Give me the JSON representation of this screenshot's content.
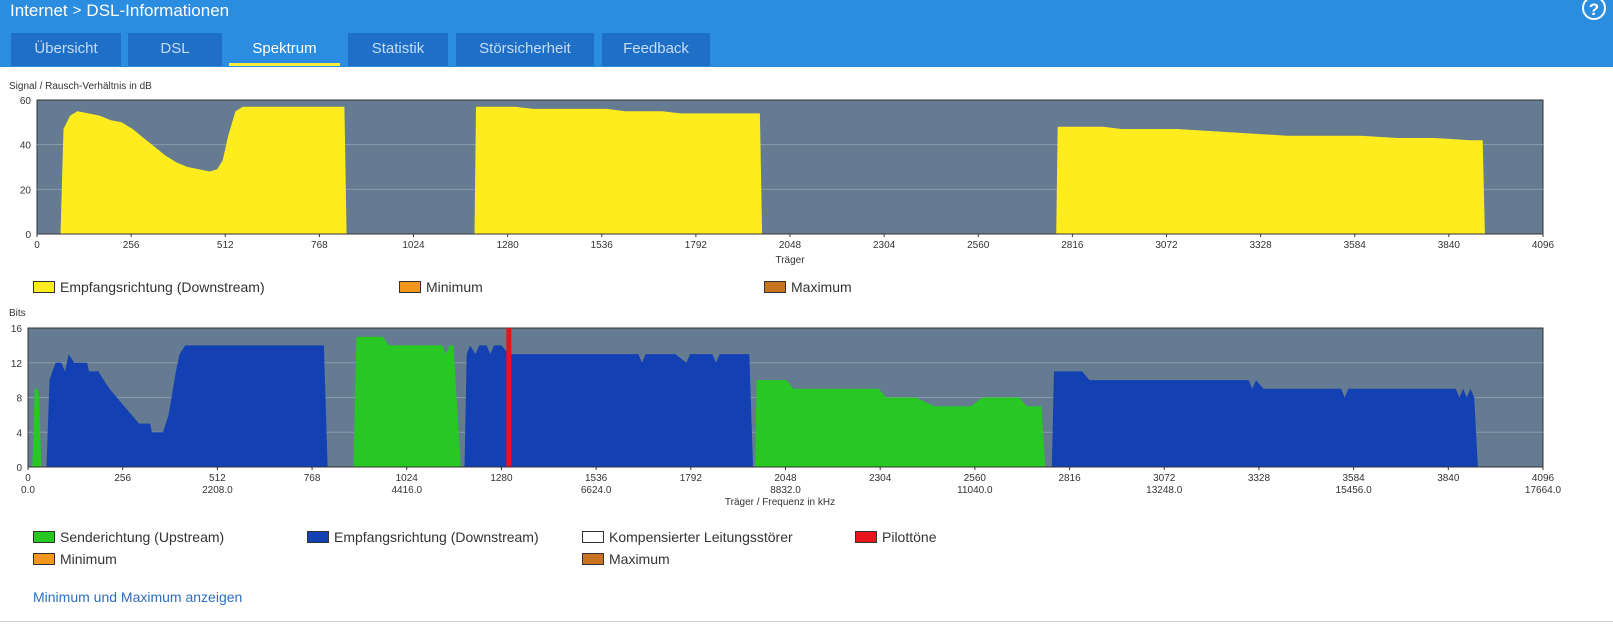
{
  "breadcrumb": {
    "parent": "Internet",
    "separator": ">",
    "current": "DSL-Informationen"
  },
  "help_label": "?",
  "tabs": [
    {
      "label": "Übersicht",
      "active": false
    },
    {
      "label": "DSL",
      "active": false
    },
    {
      "label": "Spektrum",
      "active": true
    },
    {
      "label": "Statistik",
      "active": false
    },
    {
      "label": "Störsicherheit",
      "active": false
    },
    {
      "label": "Feedback",
      "active": false
    }
  ],
  "colors": {
    "header_bg": "#2a8de0",
    "tab_bg": "#1f6fc6",
    "tab_active_underline": "#ffec3d",
    "plot_bg": "#647b91",
    "downstream_snr": "#ffec1f",
    "upstream": "#27c823",
    "downstream_bits": "#1341b3",
    "pilot": "#e8141b",
    "minimum": "#f2961d",
    "maximum": "#c8731f"
  },
  "chart_data": [
    {
      "type": "area",
      "title": "Signal / Rausch-Verhältnis in dB",
      "xlabel": "Träger",
      "ylabel": "",
      "xlim": [
        0,
        4096
      ],
      "ylim": [
        0,
        60
      ],
      "yticks": [
        0,
        20,
        40,
        60
      ],
      "xticks": [
        0,
        256,
        512,
        768,
        1024,
        1280,
        1536,
        1792,
        2048,
        2304,
        2560,
        2816,
        3072,
        3328,
        3584,
        3840,
        4096
      ],
      "grid": true,
      "legend": [
        "Empfangsrichtung (Downstream)",
        "Minimum",
        "Maximum"
      ],
      "series": [
        {
          "name": "Empfangsrichtung (Downstream)",
          "points": [
            [
              64,
              0
            ],
            [
              72,
              47
            ],
            [
              90,
              53
            ],
            [
              110,
              55
            ],
            [
              140,
              54
            ],
            [
              170,
              53
            ],
            [
              200,
              51
            ],
            [
              230,
              50
            ],
            [
              260,
              47
            ],
            [
              290,
              43
            ],
            [
              320,
              39
            ],
            [
              350,
              35
            ],
            [
              380,
              32
            ],
            [
              410,
              30
            ],
            [
              440,
              29
            ],
            [
              470,
              28
            ],
            [
              490,
              29
            ],
            [
              505,
              33
            ],
            [
              520,
              44
            ],
            [
              540,
              55
            ],
            [
              560,
              57
            ],
            [
              600,
              57
            ],
            [
              650,
              57
            ],
            [
              700,
              57
            ],
            [
              760,
              57
            ],
            [
              820,
              57
            ],
            [
              836,
              57
            ],
            [
              842,
              0
            ],
            [
              1190,
              0
            ],
            [
              1194,
              57
            ],
            [
              1250,
              57
            ],
            [
              1300,
              57
            ],
            [
              1350,
              56
            ],
            [
              1400,
              56
            ],
            [
              1450,
              56
            ],
            [
              1500,
              56
            ],
            [
              1550,
              56
            ],
            [
              1600,
              55
            ],
            [
              1650,
              55
            ],
            [
              1700,
              55
            ],
            [
              1750,
              54
            ],
            [
              1800,
              54
            ],
            [
              1850,
              54
            ],
            [
              1900,
              54
            ],
            [
              1950,
              54
            ],
            [
              1966,
              54
            ],
            [
              1972,
              0
            ],
            [
              2772,
              0
            ],
            [
              2776,
              48
            ],
            [
              2850,
              48
            ],
            [
              2900,
              48
            ],
            [
              2950,
              47
            ],
            [
              3000,
              47
            ],
            [
              3100,
              47
            ],
            [
              3200,
              46
            ],
            [
              3300,
              45
            ],
            [
              3400,
              44
            ],
            [
              3500,
              44
            ],
            [
              3600,
              44
            ],
            [
              3700,
              43
            ],
            [
              3800,
              43
            ],
            [
              3900,
              42
            ],
            [
              3932,
              42
            ],
            [
              3938,
              0
            ]
          ]
        }
      ]
    },
    {
      "type": "area",
      "title": "Bits",
      "xlabel": "Träger / Frequenz in kHz",
      "ylabel": "",
      "xlim": [
        0,
        4096
      ],
      "ylim": [
        0,
        16
      ],
      "yticks": [
        0,
        4,
        8,
        12,
        16
      ],
      "xticks": [
        0,
        256,
        512,
        768,
        1024,
        1280,
        1536,
        1792,
        2048,
        2304,
        2560,
        2816,
        3072,
        3328,
        3584,
        3840,
        4096
      ],
      "xticks_khz": [
        "0.0",
        "2208.0",
        "4416.0",
        "6624.0",
        "8832.0",
        "11040.0",
        "13248.0",
        "15456.0",
        "17664.0"
      ],
      "grid": true,
      "legend": [
        "Senderichtung (Upstream)",
        "Empfangsrichtung (Downstream)",
        "Kompensierter Leitungsstörer",
        "Pilottöne",
        "Minimum",
        "Maximum"
      ],
      "series": [
        {
          "name": "Senderichtung (Upstream)",
          "segments": [
            [
              [
                12,
                0
              ],
              [
                18,
                9
              ],
              [
                26,
                9
              ],
              [
                30,
                8
              ],
              [
                36,
                0
              ]
            ],
            [
              [
                880,
                0
              ],
              [
                888,
                15
              ],
              [
                960,
                15
              ],
              [
                975,
                14
              ],
              [
                1050,
                14
              ],
              [
                1120,
                14
              ],
              [
                1130,
                13
              ],
              [
                1140,
                14
              ],
              [
                1150,
                14
              ],
              [
                1170,
                0
              ]
            ],
            [
              [
                1966,
                0
              ],
              [
                1970,
                10
              ],
              [
                2050,
                10
              ],
              [
                2070,
                9
              ],
              [
                2150,
                9
              ],
              [
                2250,
                9
              ],
              [
                2300,
                9
              ],
              [
                2320,
                8
              ],
              [
                2400,
                8
              ],
              [
                2450,
                7
              ],
              [
                2550,
                7
              ],
              [
                2580,
                8
              ],
              [
                2680,
                8
              ],
              [
                2700,
                7
              ],
              [
                2740,
                7
              ],
              [
                2750,
                0
              ]
            ]
          ]
        },
        {
          "name": "Empfangsrichtung (Downstream)",
          "segments": [
            [
              [
                50,
                0
              ],
              [
                58,
                10
              ],
              [
                66,
                11
              ],
              [
                75,
                12
              ],
              [
                90,
                12
              ],
              [
                100,
                11
              ],
              [
                110,
                13
              ],
              [
                125,
                12
              ],
              [
                160,
                12
              ],
              [
                165,
                11
              ],
              [
                190,
                11
              ],
              [
                205,
                10
              ],
              [
                220,
                9
              ],
              [
                240,
                8
              ],
              [
                260,
                7
              ],
              [
                280,
                6
              ],
              [
                300,
                5
              ],
              [
                330,
                5
              ],
              [
                335,
                4
              ],
              [
                352,
                4
              ],
              [
                365,
                4
              ],
              [
                380,
                6
              ],
              [
                400,
                11
              ],
              [
                410,
                13
              ],
              [
                425,
                14
              ],
              [
                480,
                14
              ],
              [
                600,
                14
              ],
              [
                700,
                14
              ],
              [
                790,
                14
              ],
              [
                800,
                14
              ],
              [
                810,
                0
              ]
            ],
            [
              [
                1180,
                0
              ],
              [
                1186,
                13
              ],
              [
                1195,
                14
              ],
              [
                1210,
                13
              ],
              [
                1220,
                14
              ],
              [
                1240,
                14
              ],
              [
                1250,
                13
              ],
              [
                1260,
                14
              ],
              [
                1280,
                14
              ],
              [
                1300,
                13
              ],
              [
                1400,
                13
              ],
              [
                1500,
                13
              ],
              [
                1600,
                13
              ],
              [
                1650,
                13
              ],
              [
                1660,
                12
              ],
              [
                1670,
                13
              ],
              [
                1700,
                13
              ],
              [
                1750,
                13
              ],
              [
                1780,
                12
              ],
              [
                1790,
                13
              ],
              [
                1800,
                13
              ],
              [
                1850,
                13
              ],
              [
                1860,
                12
              ],
              [
                1870,
                13
              ],
              [
                1920,
                13
              ],
              [
                1950,
                13
              ],
              [
                1960,
                0
              ]
            ],
            [
              [
                2768,
                0
              ],
              [
                2774,
                11
              ],
              [
                2850,
                11
              ],
              [
                2870,
                10
              ],
              [
                2950,
                10
              ],
              [
                3050,
                10
              ],
              [
                3150,
                10
              ],
              [
                3250,
                10
              ],
              [
                3300,
                10
              ],
              [
                3310,
                9
              ],
              [
                3320,
                10
              ],
              [
                3340,
                9
              ],
              [
                3400,
                9
              ],
              [
                3500,
                9
              ],
              [
                3550,
                9
              ],
              [
                3560,
                8
              ],
              [
                3570,
                9
              ],
              [
                3650,
                9
              ],
              [
                3700,
                9
              ],
              [
                3800,
                9
              ],
              [
                3860,
                9
              ],
              [
                3870,
                8
              ],
              [
                3880,
                9
              ],
              [
                3890,
                8
              ],
              [
                3900,
                9
              ],
              [
                3910,
                8
              ],
              [
                3920,
                0
              ]
            ]
          ]
        },
        {
          "name": "Pilottöne",
          "x": [
            1300
          ]
        }
      ]
    }
  ],
  "legend_top": {
    "downstream": "Empfangsrichtung (Downstream)",
    "minimum": "Minimum",
    "maximum": "Maximum"
  },
  "legend_bottom": {
    "upstream": "Senderichtung (Upstream)",
    "downstream": "Empfangsrichtung (Downstream)",
    "compensated": "Kompensierter Leitungsstörer",
    "pilot": "Pilottöne",
    "minimum": "Minimum",
    "maximum": "Maximum"
  },
  "show_minmax_link": "Minimum und Maximum anzeigen"
}
